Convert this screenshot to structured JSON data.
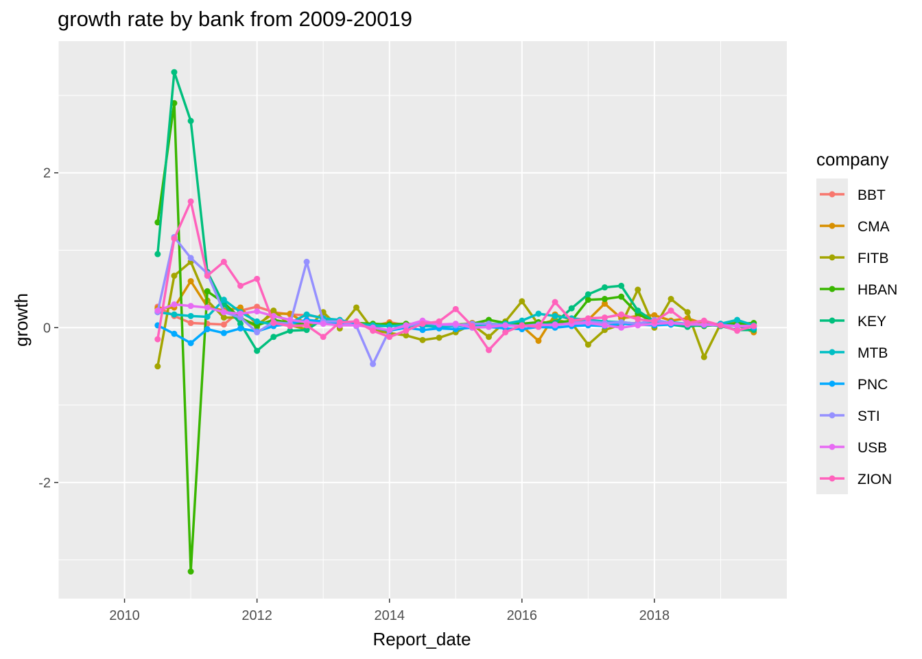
{
  "chart_data": {
    "type": "line",
    "title": "growth rate by bank from 2009-20019",
    "xlabel": "Report_date",
    "ylabel": "growth",
    "xlim": [
      2009.0,
      2020.0
    ],
    "ylim": [
      -3.5,
      3.7
    ],
    "x_ticks": [
      2010,
      2012,
      2014,
      2016,
      2018
    ],
    "y_ticks": [
      -2,
      0,
      2
    ],
    "grid": true,
    "legend": {
      "title": "company",
      "position": "right"
    },
    "x": [
      2010.5,
      2010.75,
      2011.0,
      2011.25,
      2011.5,
      2011.75,
      2012.0,
      2012.25,
      2012.5,
      2012.75,
      2013.0,
      2013.25,
      2013.5,
      2013.75,
      2014.0,
      2014.25,
      2014.5,
      2014.75,
      2015.0,
      2015.25,
      2015.5,
      2015.75,
      2016.0,
      2016.25,
      2016.5,
      2016.75,
      2017.0,
      2017.25,
      2017.5,
      2017.75,
      2018.0,
      2018.25,
      2018.5,
      2018.75,
      2019.0,
      2019.25,
      2019.5
    ],
    "series": [
      {
        "name": "BBT",
        "color": "#F8766D",
        "values": [
          0.27,
          0.15,
          0.06,
          0.05,
          0.04,
          0.22,
          0.27,
          0.2,
          0.17,
          0.16,
          0.13,
          0.06,
          0.04,
          0.02,
          0.07,
          0.03,
          0.05,
          0.04,
          0.03,
          0.06,
          0.05,
          0.04,
          0.03,
          0.05,
          0.07,
          0.08,
          0.09,
          0.07,
          0.05,
          0.06,
          0.07,
          0.04,
          0.04,
          0.05,
          0.04,
          0.03,
          0.02
        ]
      },
      {
        "name": "CMA",
        "color": "#D89000",
        "values": [
          0.25,
          0.26,
          0.6,
          0.27,
          0.22,
          0.26,
          0.04,
          0.18,
          0.18,
          0.05,
          0.09,
          0.03,
          0.05,
          0.03,
          0.06,
          0.02,
          0.03,
          0.03,
          0.02,
          0.06,
          0.04,
          0.03,
          0.02,
          -0.17,
          0.17,
          0.1,
          0.1,
          0.31,
          0.12,
          0.15,
          0.16,
          0.09,
          0.12,
          0.05,
          0.03,
          0.03,
          -0.06
        ]
      },
      {
        "name": "FITB",
        "color": "#A3A500",
        "values": [
          -0.5,
          0.67,
          0.85,
          0.35,
          0.13,
          0.13,
          0.01,
          0.22,
          0.03,
          -0.02,
          0.2,
          -0.01,
          0.26,
          -0.03,
          -0.07,
          -0.1,
          -0.16,
          -0.13,
          -0.06,
          0.04,
          -0.12,
          0.08,
          0.34,
          0.04,
          0.1,
          0.06,
          -0.22,
          -0.03,
          0.04,
          0.49,
          0.0,
          0.37,
          0.2,
          -0.38,
          0.05,
          0.07,
          0.02
        ]
      },
      {
        "name": "HBAN",
        "color": "#39B600",
        "values": [
          1.36,
          2.9,
          -3.15,
          0.47,
          0.32,
          0.12,
          0.03,
          0.1,
          0.06,
          0.05,
          0.09,
          0.03,
          0.06,
          0.05,
          0.04,
          0.05,
          0.04,
          0.03,
          0.04,
          0.05,
          0.1,
          0.06,
          0.05,
          0.07,
          0.06,
          0.09,
          0.36,
          0.37,
          0.4,
          0.18,
          0.06,
          0.04,
          0.03,
          0.02,
          0.04,
          0.05,
          0.06
        ]
      },
      {
        "name": "KEY",
        "color": "#00BF7D",
        "values": [
          0.95,
          3.3,
          2.67,
          0.72,
          0.3,
          0.05,
          -0.3,
          -0.12,
          -0.04,
          -0.03,
          0.11,
          0.07,
          0.05,
          0.02,
          0.02,
          0.03,
          0.04,
          0.03,
          0.02,
          0.03,
          0.05,
          0.04,
          0.03,
          0.04,
          0.06,
          0.25,
          0.43,
          0.52,
          0.54,
          0.22,
          0.08,
          0.04,
          0.01,
          0.04,
          0.02,
          -0.03,
          -0.03
        ]
      },
      {
        "name": "MTB",
        "color": "#00BFC4",
        "values": [
          0.2,
          0.17,
          0.15,
          0.14,
          0.36,
          0.2,
          0.08,
          0.04,
          0.06,
          0.17,
          0.12,
          0.1,
          0.05,
          0.03,
          0.02,
          0.03,
          0.02,
          0.01,
          0.02,
          0.03,
          0.04,
          0.05,
          0.09,
          0.18,
          0.15,
          0.12,
          0.1,
          0.08,
          0.07,
          0.05,
          0.06,
          0.07,
          0.05,
          0.04,
          0.05,
          0.1,
          0.03
        ]
      },
      {
        "name": "PNC",
        "color": "#00A9FF",
        "values": [
          0.03,
          -0.08,
          -0.2,
          -0.02,
          -0.07,
          -0.01,
          -0.05,
          0.02,
          0.05,
          0.1,
          0.08,
          0.06,
          0.04,
          0.0,
          -0.04,
          0.0,
          -0.03,
          -0.01,
          -0.02,
          0.0,
          0.01,
          -0.01,
          -0.02,
          0.01,
          0.0,
          0.02,
          0.03,
          0.02,
          0.05,
          0.04,
          0.03,
          0.04,
          0.05,
          0.03,
          0.04,
          0.02,
          0.0
        ]
      },
      {
        "name": "STI",
        "color": "#9590FF",
        "values": [
          0.2,
          1.17,
          0.9,
          0.7,
          0.2,
          0.13,
          -0.06,
          0.07,
          0.05,
          0.85,
          0.08,
          0.08,
          0.02,
          -0.47,
          -0.03,
          0.02,
          0.06,
          0.04,
          0.03,
          0.05,
          0.05,
          0.03,
          0.02,
          0.04,
          0.03,
          0.06,
          0.08,
          0.06,
          0.07,
          0.05,
          0.1,
          0.06,
          0.05,
          0.04,
          0.03,
          0.02,
          0.02
        ]
      },
      {
        "name": "USB",
        "color": "#E76BF3",
        "values": [
          0.22,
          0.3,
          0.28,
          0.26,
          0.2,
          0.18,
          0.21,
          0.15,
          0.1,
          0.07,
          0.05,
          0.03,
          0.03,
          0.0,
          -0.03,
          0.03,
          0.09,
          0.04,
          0.05,
          0.0,
          0.01,
          0.03,
          0.02,
          0.03,
          0.04,
          0.05,
          0.06,
          0.03,
          0.0,
          0.03,
          0.05,
          0.06,
          0.04,
          0.04,
          0.03,
          0.02,
          0.02
        ]
      },
      {
        "name": "ZION",
        "color": "#FF62BC",
        "values": [
          -0.15,
          1.15,
          1.63,
          0.67,
          0.85,
          0.54,
          0.63,
          0.06,
          0.02,
          0.03,
          -0.12,
          0.07,
          0.08,
          -0.04,
          -0.12,
          -0.04,
          0.05,
          0.08,
          0.24,
          0.02,
          -0.29,
          -0.06,
          0.03,
          0.01,
          0.33,
          0.09,
          0.12,
          0.13,
          0.17,
          0.11,
          0.08,
          0.22,
          0.06,
          0.09,
          0.03,
          -0.04,
          0.02
        ]
      }
    ]
  }
}
